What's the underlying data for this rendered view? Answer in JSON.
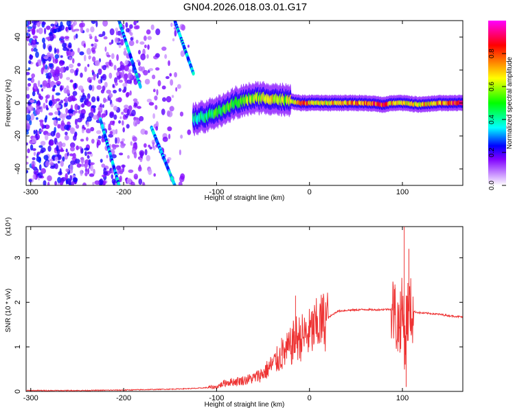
{
  "title": "GN04.2026.018.03.01.G17",
  "chart_data": [
    {
      "type": "heatmap",
      "name": "spectrogram",
      "xlabel": "Height of straight line (km)",
      "ylabel": "Frequency (Hz)",
      "xlim": [
        -305,
        165
      ],
      "ylim": [
        -50,
        50
      ],
      "x_ticks": [
        -300,
        -200,
        -100,
        0,
        100
      ],
      "y_ticks": [
        -40,
        -20,
        0,
        20,
        40
      ],
      "colorbar": {
        "label": "Normalized spectral amplitude",
        "range": [
          0,
          1
        ],
        "ticks": [
          0.0,
          0.2,
          0.4,
          0.6,
          0.8
        ],
        "colors": [
          "#ffffff",
          "#8000ff",
          "#0000ff",
          "#00ffff",
          "#00ff00",
          "#ffff00",
          "#ff0000",
          "#ff00ff"
        ]
      },
      "ridge": {
        "x": [
          -125,
          -100,
          -80,
          -60,
          -45,
          -30,
          -20,
          -10,
          0,
          20,
          40,
          60,
          80,
          90,
          100,
          120,
          140,
          165
        ],
        "freq": [
          -10,
          -6,
          0,
          3,
          3,
          2,
          1,
          0,
          0,
          0,
          0,
          0,
          -1,
          0,
          0,
          -1,
          0,
          0
        ],
        "amplitude": [
          0.4,
          0.5,
          0.55,
          0.6,
          0.7,
          0.6,
          0.7,
          0.8,
          0.75,
          0.7,
          0.75,
          0.8,
          0.85,
          0.7,
          0.7,
          0.7,
          0.75,
          0.9
        ]
      },
      "streaks": [
        {
          "x": [
            -205,
            -182
          ],
          "freq": [
            50,
            10
          ]
        },
        {
          "x": [
            -145,
            -125
          ],
          "freq": [
            50,
            18
          ]
        },
        {
          "x": [
            -225,
            -205
          ],
          "freq": [
            -10,
            -50
          ]
        },
        {
          "x": [
            -170,
            -145
          ],
          "freq": [
            -15,
            -50
          ]
        }
      ]
    },
    {
      "type": "line",
      "name": "snr",
      "xlabel": "Height of straight line (km)",
      "ylabel": "SNR (10 * v/v)",
      "y_multiplier": "(x10⁴)",
      "xlim": [
        -305,
        165
      ],
      "ylim": [
        0,
        3.7
      ],
      "x_ticks": [
        -300,
        -200,
        -100,
        0,
        100
      ],
      "y_ticks": [
        0,
        1,
        2,
        3
      ],
      "color": "#ee3333",
      "x": [
        -305,
        -250,
        -200,
        -150,
        -120,
        -100,
        -90,
        -80,
        -70,
        -60,
        -50,
        -40,
        -30,
        -20,
        -15,
        -10,
        0,
        10,
        20,
        30,
        40,
        50,
        60,
        70,
        80,
        90,
        95,
        100,
        103,
        105,
        110,
        120,
        130,
        140,
        150,
        165
      ],
      "y": [
        0.02,
        0.02,
        0.03,
        0.05,
        0.07,
        0.1,
        0.2,
        0.22,
        0.25,
        0.3,
        0.4,
        0.6,
        0.8,
        1.0,
        1.2,
        1.2,
        1.3,
        1.5,
        1.65,
        1.8,
        1.82,
        1.83,
        1.84,
        1.83,
        1.84,
        1.85,
        1.5,
        1.8,
        1.1,
        1.8,
        1.8,
        1.76,
        1.75,
        1.73,
        1.7,
        1.67
      ],
      "spikes": [
        {
          "x": -15,
          "y": 2.15
        },
        {
          "x": -30,
          "y": 1.2
        },
        {
          "x": 92,
          "y": 2.4
        },
        {
          "x": 95,
          "y": 0.9
        },
        {
          "x": 102,
          "y": 3.7
        },
        {
          "x": 104,
          "y": 0.1
        },
        {
          "x": 107,
          "y": 3.2
        }
      ]
    }
  ]
}
